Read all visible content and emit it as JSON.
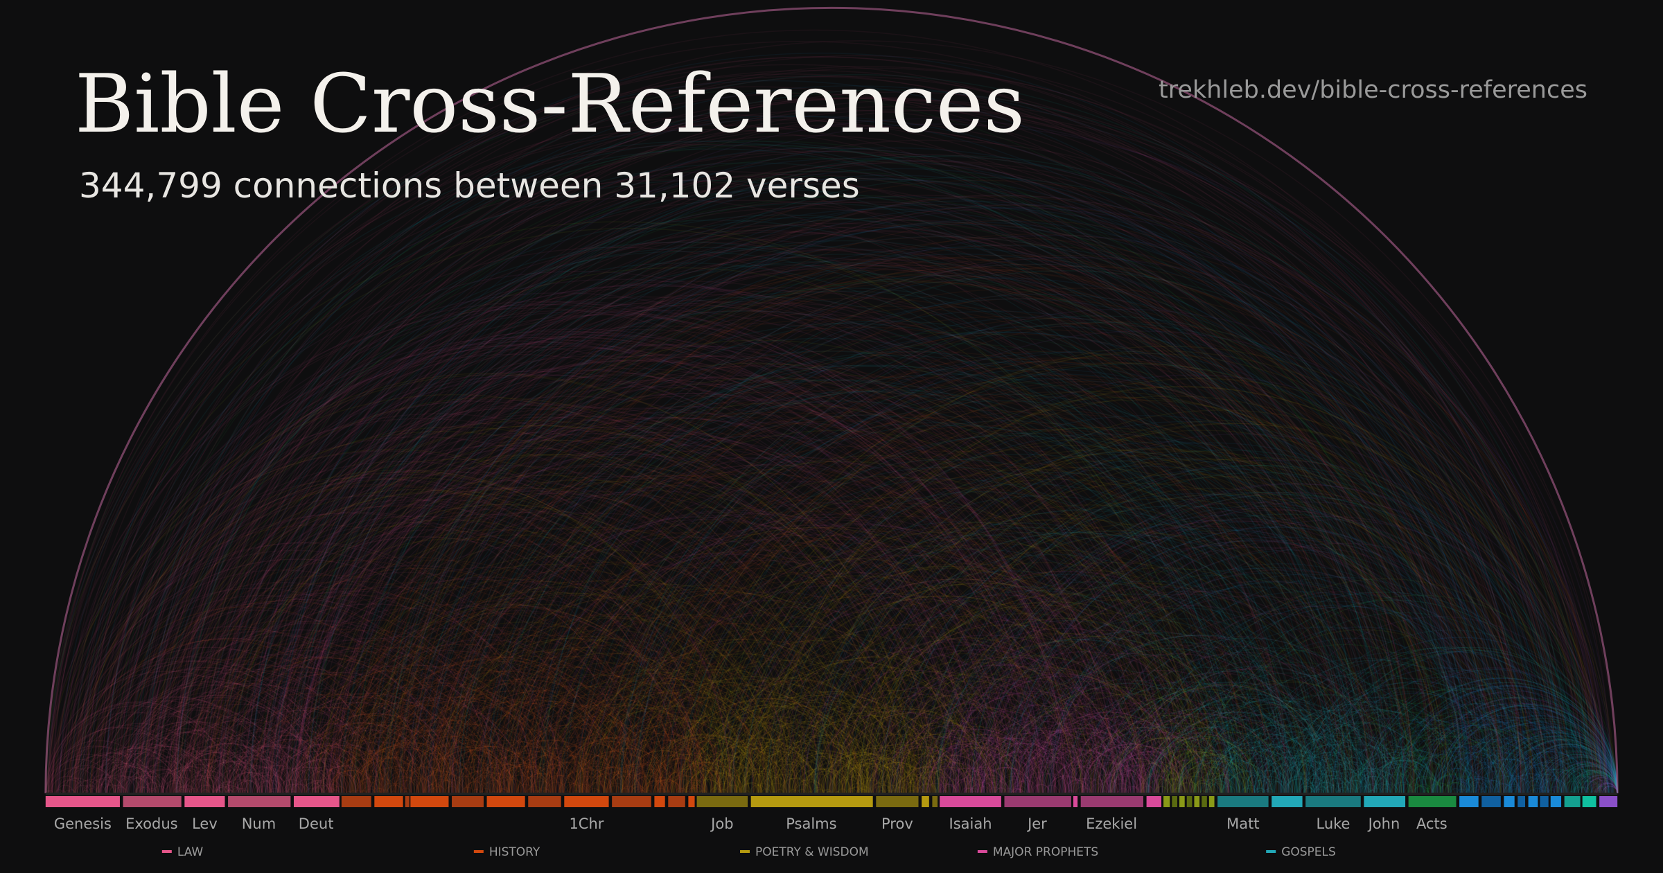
{
  "header": {
    "title": "Bible Cross-References",
    "subtitle": "344,799 connections between 31,102 verses",
    "url": "trekhleb.dev/bible-cross-references"
  },
  "books": [
    "Genesis",
    "Exodus",
    "Lev",
    "Num",
    "Deut",
    "1Chr",
    "Job",
    "Psalms",
    "Prov",
    "Isaiah",
    "Jer",
    "Ezekiel",
    "Matt",
    "Luke",
    "John",
    "Acts"
  ],
  "legend": [
    "LAW",
    "HISTORY",
    "POETRY & WISDOM",
    "MAJOR PROPHETS",
    "GOSPELS"
  ]
}
